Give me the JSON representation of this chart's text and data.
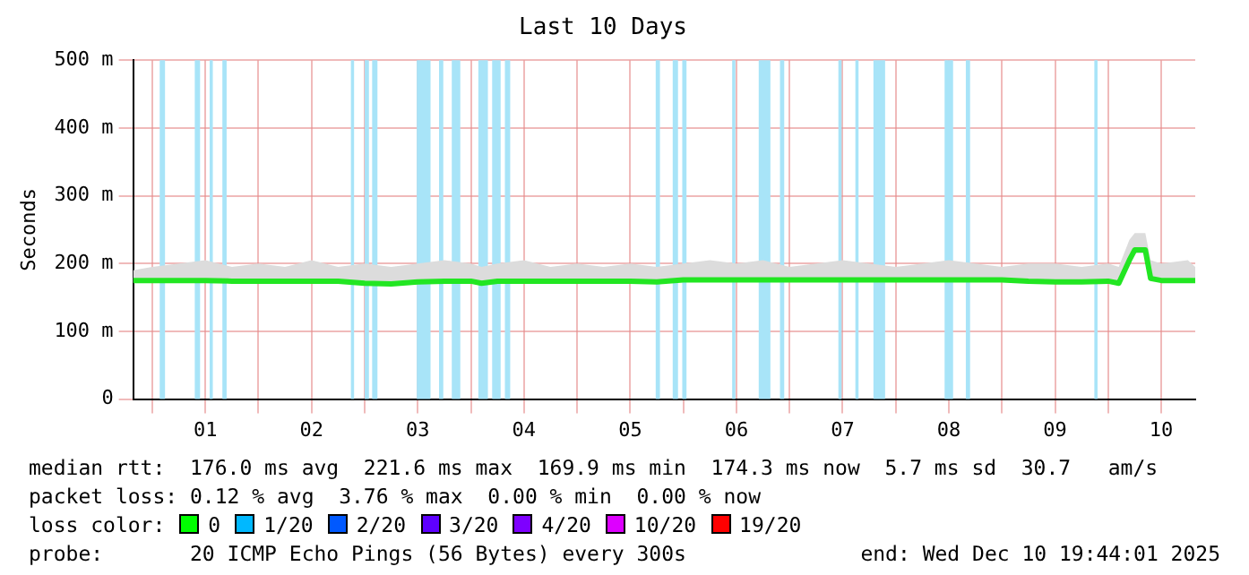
{
  "chart_data": {
    "type": "line",
    "title": "Last 10 Days",
    "ylabel": "Seconds",
    "xlim": [
      -0.18,
      9.82
    ],
    "xticks": [
      {
        "value": 0,
        "label": null
      },
      {
        "value": 0.5,
        "label": "01"
      },
      {
        "value": 1,
        "label": null
      },
      {
        "value": 1.5,
        "label": "02"
      },
      {
        "value": 2,
        "label": null
      },
      {
        "value": 2.5,
        "label": "03"
      },
      {
        "value": 3,
        "label": null
      },
      {
        "value": 3.5,
        "label": "04"
      },
      {
        "value": 4,
        "label": null
      },
      {
        "value": 4.5,
        "label": "05"
      },
      {
        "value": 5,
        "label": null
      },
      {
        "value": 5.5,
        "label": "06"
      },
      {
        "value": 6,
        "label": null
      },
      {
        "value": 6.5,
        "label": "07"
      },
      {
        "value": 7,
        "label": null
      },
      {
        "value": 7.5,
        "label": "08"
      },
      {
        "value": 8,
        "label": null
      },
      {
        "value": 8.5,
        "label": "09"
      },
      {
        "value": 9,
        "label": null
      },
      {
        "value": 9.5,
        "label": "10"
      }
    ],
    "ylim": [
      0,
      500
    ],
    "yticks": [
      {
        "value": 0,
        "label": "0"
      },
      {
        "value": 100,
        "label": "100 m"
      },
      {
        "value": 200,
        "label": "200 m"
      },
      {
        "value": 300,
        "label": "300 m"
      },
      {
        "value": 400,
        "label": "400 m"
      },
      {
        "value": 500,
        "label": "500 m"
      }
    ],
    "grid": true,
    "legend": false,
    "series": [
      {
        "color": "#22e622",
        "x": [
          -0.18,
          0,
          0.25,
          0.5,
          0.75,
          1,
          1.25,
          1.5,
          1.75,
          2,
          2.25,
          2.5,
          2.75,
          3,
          3.1,
          3.25,
          3.5,
          3.75,
          4,
          4.25,
          4.5,
          4.75,
          5,
          5.25,
          5.5,
          5.75,
          6,
          6.25,
          6.5,
          6.75,
          7,
          7.25,
          7.5,
          7.75,
          8,
          8.25,
          8.5,
          8.75,
          9,
          9.1,
          9.2,
          9.25,
          9.35,
          9.4,
          9.5,
          9.75,
          9.82
        ],
        "values": [
          175,
          175,
          175,
          175,
          174,
          174,
          174,
          174,
          174,
          171,
          170,
          173,
          174,
          174,
          171,
          174,
          174,
          174,
          174,
          174,
          174,
          173,
          176,
          176,
          176,
          176,
          176,
          176,
          176,
          176,
          176,
          176,
          176,
          176,
          176,
          174,
          173,
          173,
          174,
          171,
          205,
          220,
          220,
          178,
          175,
          175,
          175
        ],
        "upper": [
          190,
          195,
          200,
          205,
          195,
          200,
          195,
          205,
          195,
          200,
          195,
          200,
          205,
          200,
          195,
          200,
          205,
          195,
          200,
          195,
          200,
          195,
          200,
          205,
          200,
          205,
          195,
          200,
          205,
          200,
          195,
          200,
          205,
          200,
          195,
          200,
          200,
          195,
          200,
          195,
          235,
          245,
          245,
          205,
          200,
          205,
          195
        ],
        "lower": [
          172,
          172,
          172,
          172,
          172,
          172,
          172,
          172,
          172,
          169,
          168,
          171,
          172,
          172,
          169,
          172,
          172,
          172,
          172,
          172,
          172,
          171,
          174,
          174,
          174,
          174,
          174,
          174,
          174,
          174,
          174,
          174,
          174,
          174,
          174,
          172,
          171,
          171,
          172,
          169,
          200,
          215,
          215,
          175,
          173,
          173,
          173
        ]
      }
    ],
    "bands": [
      {
        "axis": "x",
        "from": 0.07,
        "to": 0.12,
        "color": "#a8e4f8"
      },
      {
        "axis": "x",
        "from": 0.4,
        "to": 0.45,
        "color": "#a8e4f8"
      },
      {
        "axis": "x",
        "from": 0.54,
        "to": 0.57,
        "color": "#a8e4f8"
      },
      {
        "axis": "x",
        "from": 0.66,
        "to": 0.7,
        "color": "#a8e4f8"
      },
      {
        "axis": "x",
        "from": 1.87,
        "to": 1.9,
        "color": "#a8e4f8"
      },
      {
        "axis": "x",
        "from": 2.0,
        "to": 2.04,
        "color": "#a8e4f8"
      },
      {
        "axis": "x",
        "from": 2.07,
        "to": 2.12,
        "color": "#a8e4f8"
      },
      {
        "axis": "x",
        "from": 2.49,
        "to": 2.62,
        "color": "#a8e4f8"
      },
      {
        "axis": "x",
        "from": 2.7,
        "to": 2.74,
        "color": "#a8e4f8"
      },
      {
        "axis": "x",
        "from": 2.82,
        "to": 2.9,
        "color": "#a8e4f8"
      },
      {
        "axis": "x",
        "from": 3.07,
        "to": 3.16,
        "color": "#a8e4f8"
      },
      {
        "axis": "x",
        "from": 3.2,
        "to": 3.28,
        "color": "#a8e4f8"
      },
      {
        "axis": "x",
        "from": 3.32,
        "to": 3.37,
        "color": "#a8e4f8"
      },
      {
        "axis": "x",
        "from": 4.74,
        "to": 4.78,
        "color": "#a8e4f8"
      },
      {
        "axis": "x",
        "from": 4.9,
        "to": 4.95,
        "color": "#a8e4f8"
      },
      {
        "axis": "x",
        "from": 4.99,
        "to": 5.03,
        "color": "#a8e4f8"
      },
      {
        "axis": "x",
        "from": 5.46,
        "to": 5.49,
        "color": "#a8e4f8"
      },
      {
        "axis": "x",
        "from": 5.71,
        "to": 5.82,
        "color": "#a8e4f8"
      },
      {
        "axis": "x",
        "from": 5.91,
        "to": 5.95,
        "color": "#a8e4f8"
      },
      {
        "axis": "x",
        "from": 6.46,
        "to": 6.49,
        "color": "#a8e4f8"
      },
      {
        "axis": "x",
        "from": 6.62,
        "to": 6.65,
        "color": "#a8e4f8"
      },
      {
        "axis": "x",
        "from": 6.79,
        "to": 6.9,
        "color": "#a8e4f8"
      },
      {
        "axis": "x",
        "from": 7.46,
        "to": 7.54,
        "color": "#a8e4f8"
      },
      {
        "axis": "x",
        "from": 7.66,
        "to": 7.7,
        "color": "#a8e4f8"
      },
      {
        "axis": "x",
        "from": 8.87,
        "to": 8.9,
        "color": "#a8e4f8"
      }
    ],
    "annotations": [
      "median rtt:  176.0 ms avg  221.6 ms max  169.9 ms min  174.3 ms now  5.7 ms sd  30.7   am/s",
      "packet loss: 0.12 % avg  3.76 % max  0.00 % min  0.00 % now",
      "loss color:",
      "0",
      "1/20",
      "2/20",
      "3/20",
      "4/20",
      "10/20",
      "19/20",
      "probe:       20 ICMP Echo Pings (56 Bytes) every 300s",
      "end: Wed Dec 10 19:44:01 2025"
    ]
  }
}
